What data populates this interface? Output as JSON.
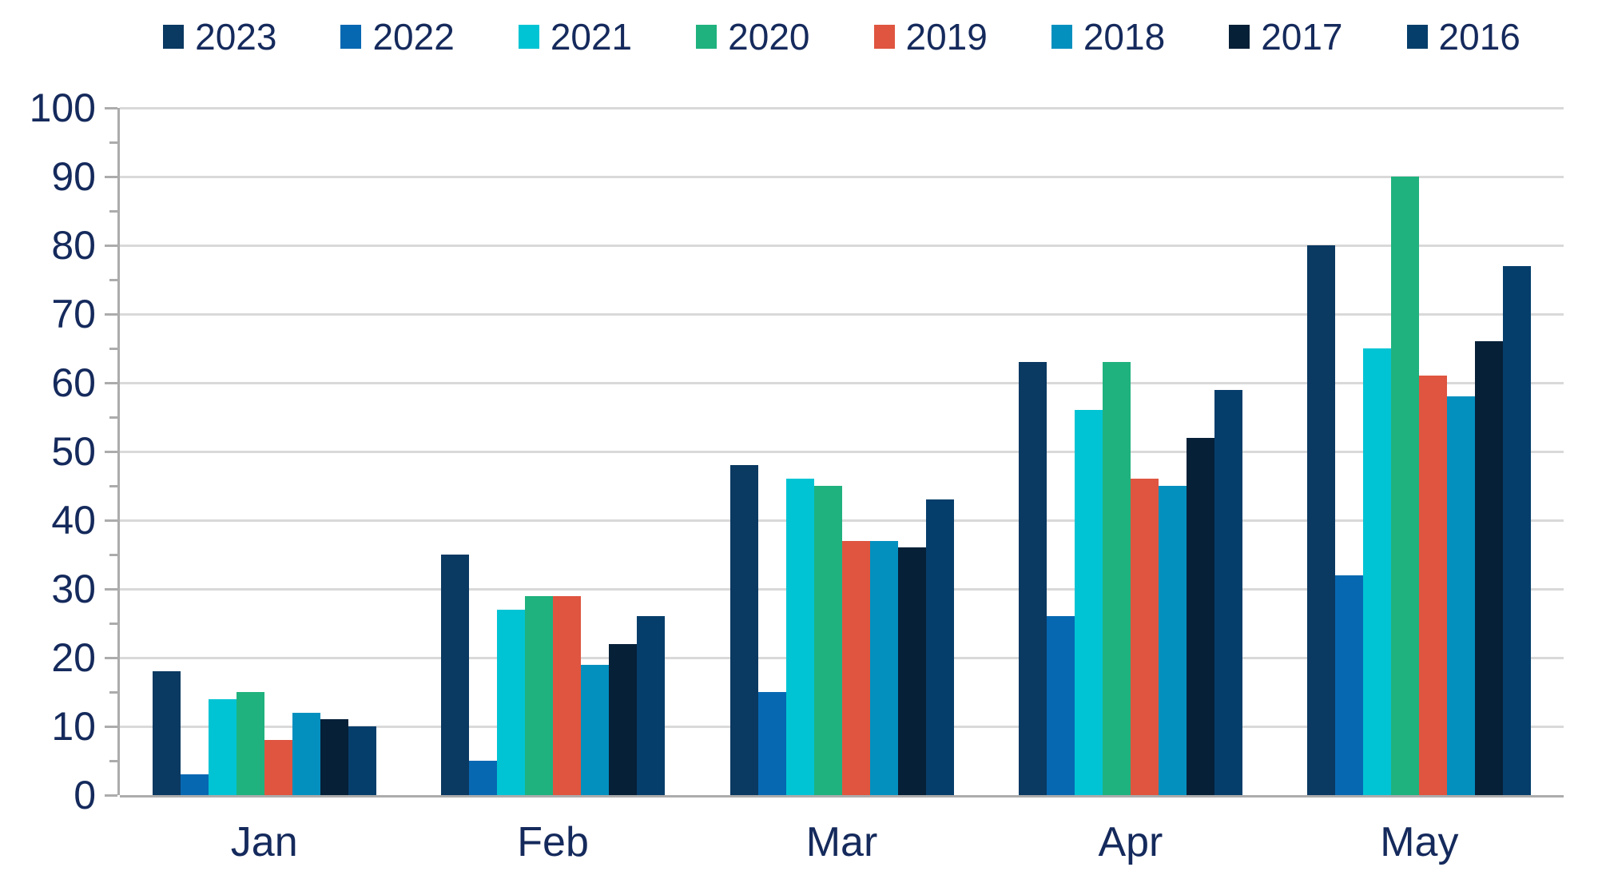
{
  "chart_data": {
    "type": "bar",
    "title": "",
    "xlabel": "",
    "ylabel": "",
    "categories": [
      "Jan",
      "Feb",
      "Mar",
      "Apr",
      "May"
    ],
    "series": [
      {
        "name": "2023",
        "color": "#0A3962",
        "values": [
          18,
          35,
          48,
          63,
          80
        ]
      },
      {
        "name": "2022",
        "color": "#0768B2",
        "values": [
          3,
          5,
          15,
          26,
          32
        ]
      },
      {
        "name": "2021",
        "color": "#00C4D4",
        "values": [
          14,
          27,
          46,
          56,
          65
        ]
      },
      {
        "name": "2020",
        "color": "#1FB27E",
        "values": [
          15,
          29,
          45,
          63,
          90
        ]
      },
      {
        "name": "2019",
        "color": "#DF5540",
        "values": [
          8,
          29,
          37,
          46,
          61
        ]
      },
      {
        "name": "2018",
        "color": "#0490BF",
        "values": [
          12,
          19,
          37,
          45,
          58
        ]
      },
      {
        "name": "2017",
        "color": "#062038",
        "values": [
          11,
          22,
          36,
          52,
          66
        ]
      },
      {
        "name": "2016",
        "color": "#063E6B",
        "values": [
          10,
          26,
          43,
          59,
          77
        ]
      }
    ],
    "ylim": [
      0,
      100
    ],
    "ytick_step": 10,
    "ytick_minor_step": 5,
    "ytick_labels": [
      "0",
      "10",
      "20",
      "30",
      "40",
      "50",
      "60",
      "70",
      "80",
      "90",
      "100"
    ],
    "legend_position": "top",
    "grid": "horizontal-major"
  },
  "colors": {
    "text": "#152A5C",
    "gridline": "#D9D9D9",
    "axis": "#ACACAC",
    "background": "#FFFFFF"
  }
}
